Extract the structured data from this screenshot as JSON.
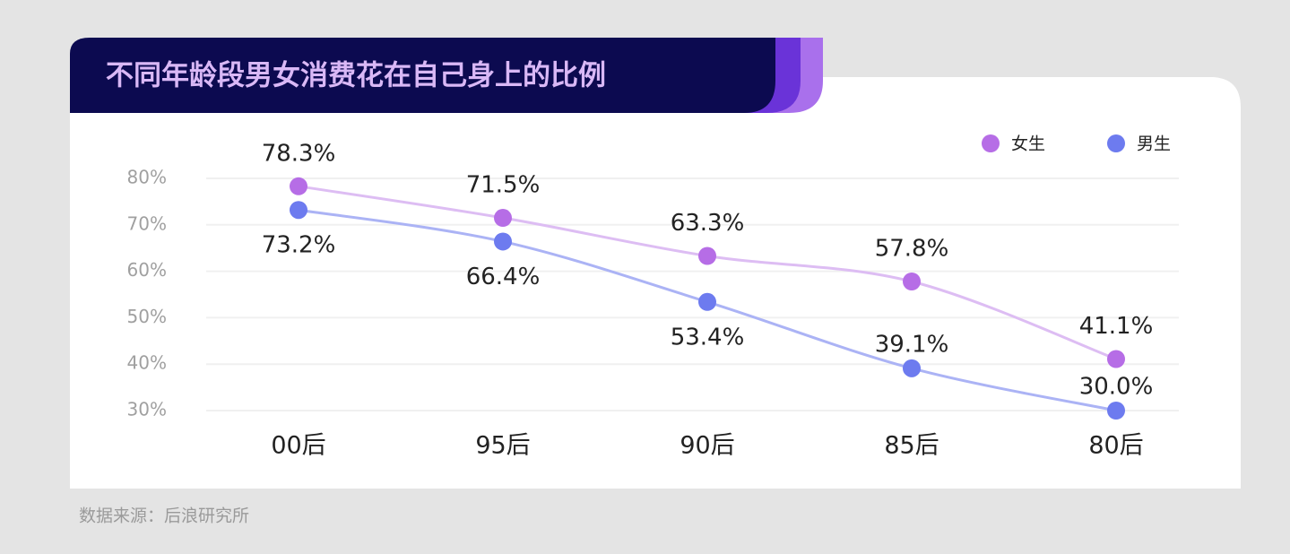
{
  "chart_data": {
    "type": "line",
    "title": "不同年龄段男女消费花在自己身上的比例",
    "source": "数据来源：后浪研究所",
    "categories": [
      "00后",
      "95后",
      "90后",
      "85后",
      "80后"
    ],
    "series": [
      {
        "name": "女生",
        "color": "#b66de6",
        "line_color": "#ddbdf3",
        "values": [
          78.3,
          71.5,
          63.3,
          57.8,
          41.1
        ],
        "value_labels": [
          "78.3%",
          "71.5%",
          "63.3%",
          "57.8%",
          "41.1%"
        ]
      },
      {
        "name": "男生",
        "color": "#6d7bef",
        "line_color": "#abb3f5",
        "values": [
          73.2,
          66.4,
          53.4,
          39.1,
          30.0
        ],
        "value_labels": [
          "73.2%",
          "66.4%",
          "53.4%",
          "39.1%",
          "30.0%"
        ]
      }
    ],
    "ylim": [
      30,
      80
    ],
    "yticks": [
      {
        "value": 30,
        "label": "30%"
      },
      {
        "value": 40,
        "label": "40%"
      },
      {
        "value": 50,
        "label": "50%"
      },
      {
        "value": 60,
        "label": "60%"
      },
      {
        "value": 70,
        "label": "70%"
      },
      {
        "value": 80,
        "label": "80%"
      }
    ],
    "grid": true,
    "legend": "upper right"
  }
}
